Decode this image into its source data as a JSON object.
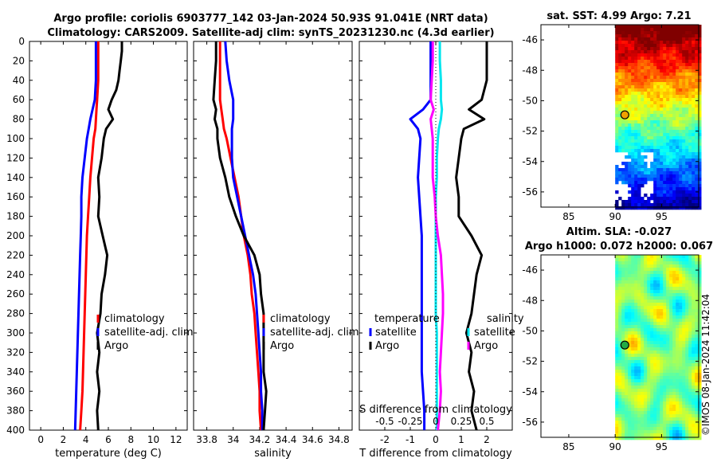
{
  "header": {
    "line1": "Argo profile: coriolis 6903777_142 03-Jan-2024 50.93S 91.041E (NRT data)",
    "line2": "Climatology: CARS2009. Satellite-adj clim: synTS_20231230.nc (4.3d earlier)"
  },
  "copyright": "©IMOS 08-Jan-2024 11:42:04",
  "colors": {
    "climatology": "#ff0000",
    "satellite": "#0000ff",
    "argo": "#000000",
    "sat_salinity": "#00e5ee",
    "argo_salinity": "#ff00ff"
  },
  "chart_data": [
    {
      "id": "temperature",
      "type": "line",
      "xlabel": "temperature (deg C)",
      "xlim": [
        -1,
        13
      ],
      "ylim": [
        0,
        400
      ],
      "xticks": [
        "0",
        "2",
        "4",
        "6",
        "8",
        "10",
        "12"
      ],
      "yticks": [
        "0",
        "20",
        "40",
        "60",
        "80",
        "100",
        "120",
        "140",
        "160",
        "180",
        "200",
        "220",
        "240",
        "260",
        "280",
        "300",
        "320",
        "340",
        "360",
        "380",
        "400"
      ],
      "legend": [
        "climatology",
        "satellite-adj. clim",
        "Argo"
      ],
      "depth": [
        0,
        10,
        20,
        30,
        40,
        50,
        60,
        70,
        80,
        90,
        100,
        120,
        140,
        160,
        180,
        200,
        220,
        240,
        260,
        280,
        300,
        320,
        340,
        360,
        380,
        400
      ],
      "series": [
        {
          "name": "climatology",
          "color": "#ff0000",
          "values": [
            5.1,
            5.1,
            5.1,
            5.1,
            5.1,
            5.05,
            5.0,
            4.95,
            4.9,
            4.85,
            4.7,
            4.55,
            4.4,
            4.3,
            4.2,
            4.1,
            4.05,
            4.0,
            3.95,
            3.9,
            3.85,
            3.8,
            3.75,
            3.7,
            3.6,
            3.5
          ]
        },
        {
          "name": "satellite-adj. clim",
          "color": "#0000ff",
          "values": [
            4.9,
            4.9,
            4.9,
            4.9,
            4.9,
            4.85,
            4.8,
            4.6,
            4.4,
            4.25,
            4.1,
            3.9,
            3.7,
            3.6,
            3.6,
            3.55,
            3.5,
            3.45,
            3.4,
            3.35,
            3.3,
            3.25,
            3.2,
            3.15,
            3.1,
            3.05
          ]
        },
        {
          "name": "Argo",
          "color": "#000000",
          "values": [
            7.2,
            7.2,
            7.1,
            7.0,
            6.9,
            6.7,
            6.3,
            6.0,
            6.4,
            5.8,
            5.6,
            5.4,
            5.1,
            5.2,
            5.1,
            5.5,
            5.9,
            5.7,
            5.4,
            5.3,
            5.0,
            5.2,
            5.0,
            5.2,
            5.0,
            5.1
          ]
        }
      ]
    },
    {
      "id": "salinity",
      "type": "line",
      "xlabel": "salinity",
      "xlim": [
        33.7,
        34.9
      ],
      "ylim": [
        0,
        400
      ],
      "xticks": [
        "33.8",
        "34",
        "34.2",
        "34.4",
        "34.6",
        "34.8"
      ],
      "legend": [
        "climatology",
        "satellite-adj. clim",
        "Argo"
      ],
      "depth": [
        0,
        20,
        40,
        60,
        70,
        80,
        90,
        100,
        120,
        140,
        160,
        180,
        200,
        220,
        240,
        260,
        280,
        300,
        320,
        340,
        360,
        380,
        400
      ],
      "series": [
        {
          "name": "climatology",
          "color": "#ff0000",
          "values": [
            33.9,
            33.9,
            33.9,
            33.9,
            33.91,
            33.92,
            33.93,
            33.95,
            33.98,
            34.01,
            34.04,
            34.06,
            34.08,
            34.11,
            34.13,
            34.14,
            34.16,
            34.17,
            34.18,
            34.19,
            34.2,
            34.2,
            34.21
          ]
        },
        {
          "name": "satellite-adj. clim",
          "color": "#0000ff",
          "values": [
            33.94,
            33.95,
            33.97,
            34.0,
            34.0,
            34.0,
            33.99,
            33.99,
            33.99,
            34.0,
            34.03,
            34.06,
            34.09,
            34.12,
            34.15,
            34.17,
            34.18,
            34.19,
            34.2,
            34.21,
            34.21,
            34.22,
            34.22
          ]
        },
        {
          "name": "Argo",
          "color": "#000000",
          "values": [
            33.87,
            33.87,
            33.86,
            33.85,
            33.87,
            33.86,
            33.88,
            33.88,
            33.9,
            33.94,
            33.97,
            34.02,
            34.08,
            34.16,
            34.2,
            34.21,
            34.23,
            34.23,
            34.23,
            34.23,
            34.25,
            34.24,
            34.23
          ]
        }
      ]
    },
    {
      "id": "differences",
      "type": "line",
      "xlabel": "T difference from climatology",
      "xlabel_top": "S difference from climatology",
      "xlim": [
        -3,
        3
      ],
      "ylim": [
        0,
        400
      ],
      "xticks": [
        "-2",
        "-1",
        "0",
        "1",
        "2"
      ],
      "xticks_top": [
        "-0.5",
        "-0.25",
        "0",
        "0.25",
        "0.5"
      ],
      "legend_groups": [
        {
          "title": "temperature",
          "entries": [
            "satellite",
            "Argo"
          ]
        },
        {
          "title": "salinity",
          "entries": [
            "satellite",
            "Argo"
          ]
        }
      ],
      "depth": [
        0,
        20,
        40,
        60,
        70,
        80,
        90,
        100,
        120,
        140,
        160,
        180,
        200,
        220,
        240,
        260,
        280,
        300,
        320,
        340,
        360,
        380,
        400
      ],
      "series": [
        {
          "name": "temperature satellite",
          "color": "#0000ff",
          "values": [
            -0.2,
            -0.2,
            -0.2,
            -0.2,
            -0.5,
            -1.0,
            -0.7,
            -0.6,
            -0.65,
            -0.7,
            -0.65,
            -0.6,
            -0.55,
            -0.55,
            -0.55,
            -0.55,
            -0.55,
            -0.55,
            -0.55,
            -0.55,
            -0.5,
            -0.45,
            -0.45
          ]
        },
        {
          "name": "temperature Argo",
          "color": "#000000",
          "values": [
            2.0,
            2.0,
            2.0,
            1.8,
            1.3,
            1.9,
            1.1,
            1.0,
            0.9,
            0.8,
            0.9,
            0.9,
            1.4,
            1.8,
            1.6,
            1.5,
            1.4,
            1.2,
            1.4,
            1.3,
            1.5,
            1.4,
            1.6
          ]
        },
        {
          "name": "salinity satellite",
          "color": "#00e5ee",
          "values": [
            0.04,
            0.04,
            0.05,
            0.05,
            0.06,
            0.05,
            0.03,
            0.02,
            0.01,
            0.01,
            0.0,
            0.0,
            0.0,
            0.0,
            0.0,
            0.0,
            0.0,
            0.01,
            0.01,
            0.01,
            0.01,
            0.01,
            0.01
          ]
        },
        {
          "name": "salinity Argo",
          "color": "#ff00ff",
          "values": [
            -0.03,
            -0.03,
            -0.04,
            -0.05,
            -0.02,
            -0.05,
            -0.04,
            -0.03,
            -0.03,
            -0.03,
            -0.01,
            0.0,
            0.02,
            0.05,
            0.06,
            0.07,
            0.07,
            0.06,
            0.05,
            0.04,
            0.05,
            0.04,
            0.02
          ]
        }
      ]
    },
    {
      "id": "sst_map",
      "type": "heatmap",
      "title": "sat. SST: 4.99 Argo: 7.21",
      "xlim": [
        82,
        99
      ],
      "ylim": [
        -57,
        -45
      ],
      "xticks": [
        "85",
        "90",
        "95"
      ],
      "yticks": [
        "-46",
        "-48",
        "-50",
        "-52",
        "-54",
        "-56"
      ],
      "data_lon_start": 90,
      "argo_position": {
        "lon": 91.04,
        "lat": -50.93
      }
    },
    {
      "id": "sla_map",
      "type": "heatmap",
      "title_line1": "Altim. SLA: -0.027",
      "title_line2": "Argo h1000: 0.072 h2000: 0.067",
      "xlim": [
        82,
        99
      ],
      "ylim": [
        -57,
        -45
      ],
      "xticks": [
        "85",
        "90",
        "95"
      ],
      "yticks": [
        "-46",
        "-48",
        "-50",
        "-52",
        "-54",
        "-56"
      ],
      "data_lon_start": 90,
      "argo_position": {
        "lon": 91.04,
        "lat": -50.93
      }
    }
  ]
}
